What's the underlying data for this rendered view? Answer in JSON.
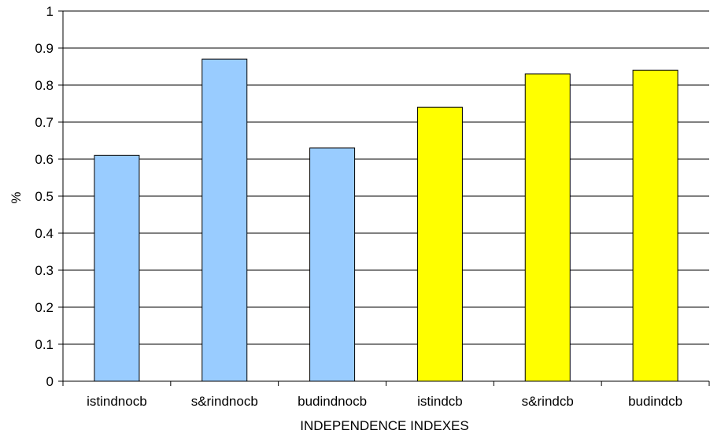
{
  "chart_data": {
    "type": "bar",
    "categories": [
      "istindnocb",
      "s&rindnocb",
      "budindnocb",
      "istindcb",
      "s&rindcb",
      "budindcb"
    ],
    "values": [
      0.61,
      0.87,
      0.63,
      0.74,
      0.83,
      0.84
    ],
    "bar_colors": [
      "#99ccff",
      "#99ccff",
      "#99ccff",
      "#ffff00",
      "#ffff00",
      "#ffff00"
    ],
    "xlabel": "INDEPENDENCE INDEXES",
    "ylabel": "%",
    "ylim": [
      0,
      1
    ],
    "yticks": [
      "0",
      "0.1",
      "0.2",
      "0.3",
      "0.4",
      "0.5",
      "0.6",
      "0.7",
      "0.8",
      "0.9",
      "1"
    ],
    "grid": true,
    "legend": "none"
  }
}
